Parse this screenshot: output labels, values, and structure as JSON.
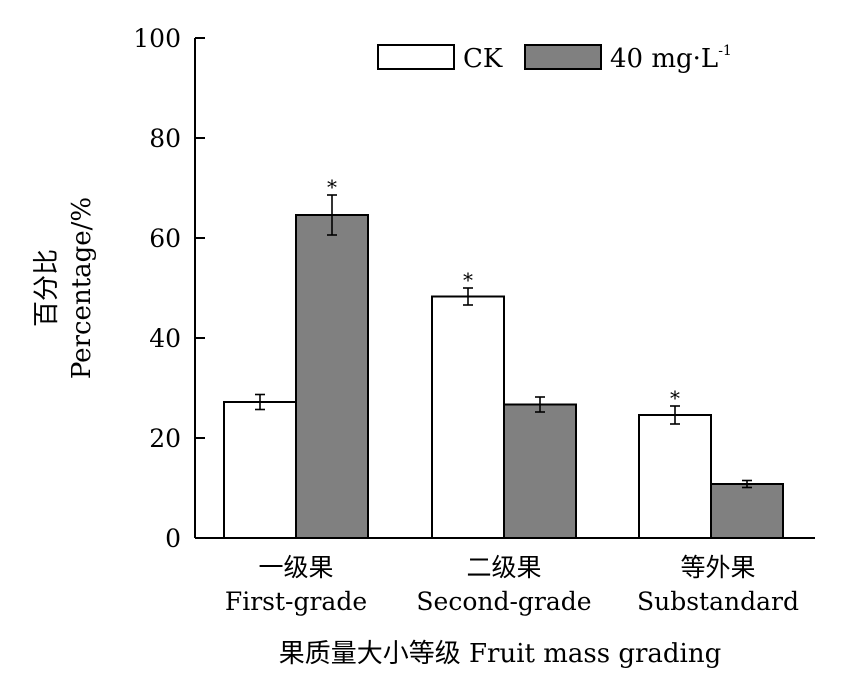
{
  "chart_data": {
    "type": "bar",
    "title": "",
    "xlabel": "果质量大小等级 Fruit mass grading",
    "ylabel": [
      "百分比",
      "Percentage/%"
    ],
    "ylim": [
      0,
      100
    ],
    "yticks": [
      0,
      20,
      40,
      60,
      80,
      100
    ],
    "grid": false,
    "legend_position": "top-right",
    "categories": [
      {
        "zh": "一级果",
        "en": "First-grade"
      },
      {
        "zh": "二级果",
        "en": "Second-grade"
      },
      {
        "zh": "等外果",
        "en": "Substandard"
      }
    ],
    "series": [
      {
        "name": "CK",
        "color": "#ffffff",
        "values": [
          27.2,
          48.3,
          24.6
        ],
        "errors": [
          1.5,
          1.7,
          1.8
        ],
        "significance": [
          "",
          "*",
          "*"
        ]
      },
      {
        "name": "40 mg·L-1",
        "color": "#808080",
        "values": [
          64.6,
          26.7,
          10.8
        ],
        "errors": [
          4.0,
          1.5,
          0.7
        ],
        "significance": [
          "*",
          "",
          ""
        ]
      }
    ],
    "legend": {
      "ck_label": "CK",
      "treat_label": "40 mg·L",
      "treat_sup": "-1"
    }
  }
}
